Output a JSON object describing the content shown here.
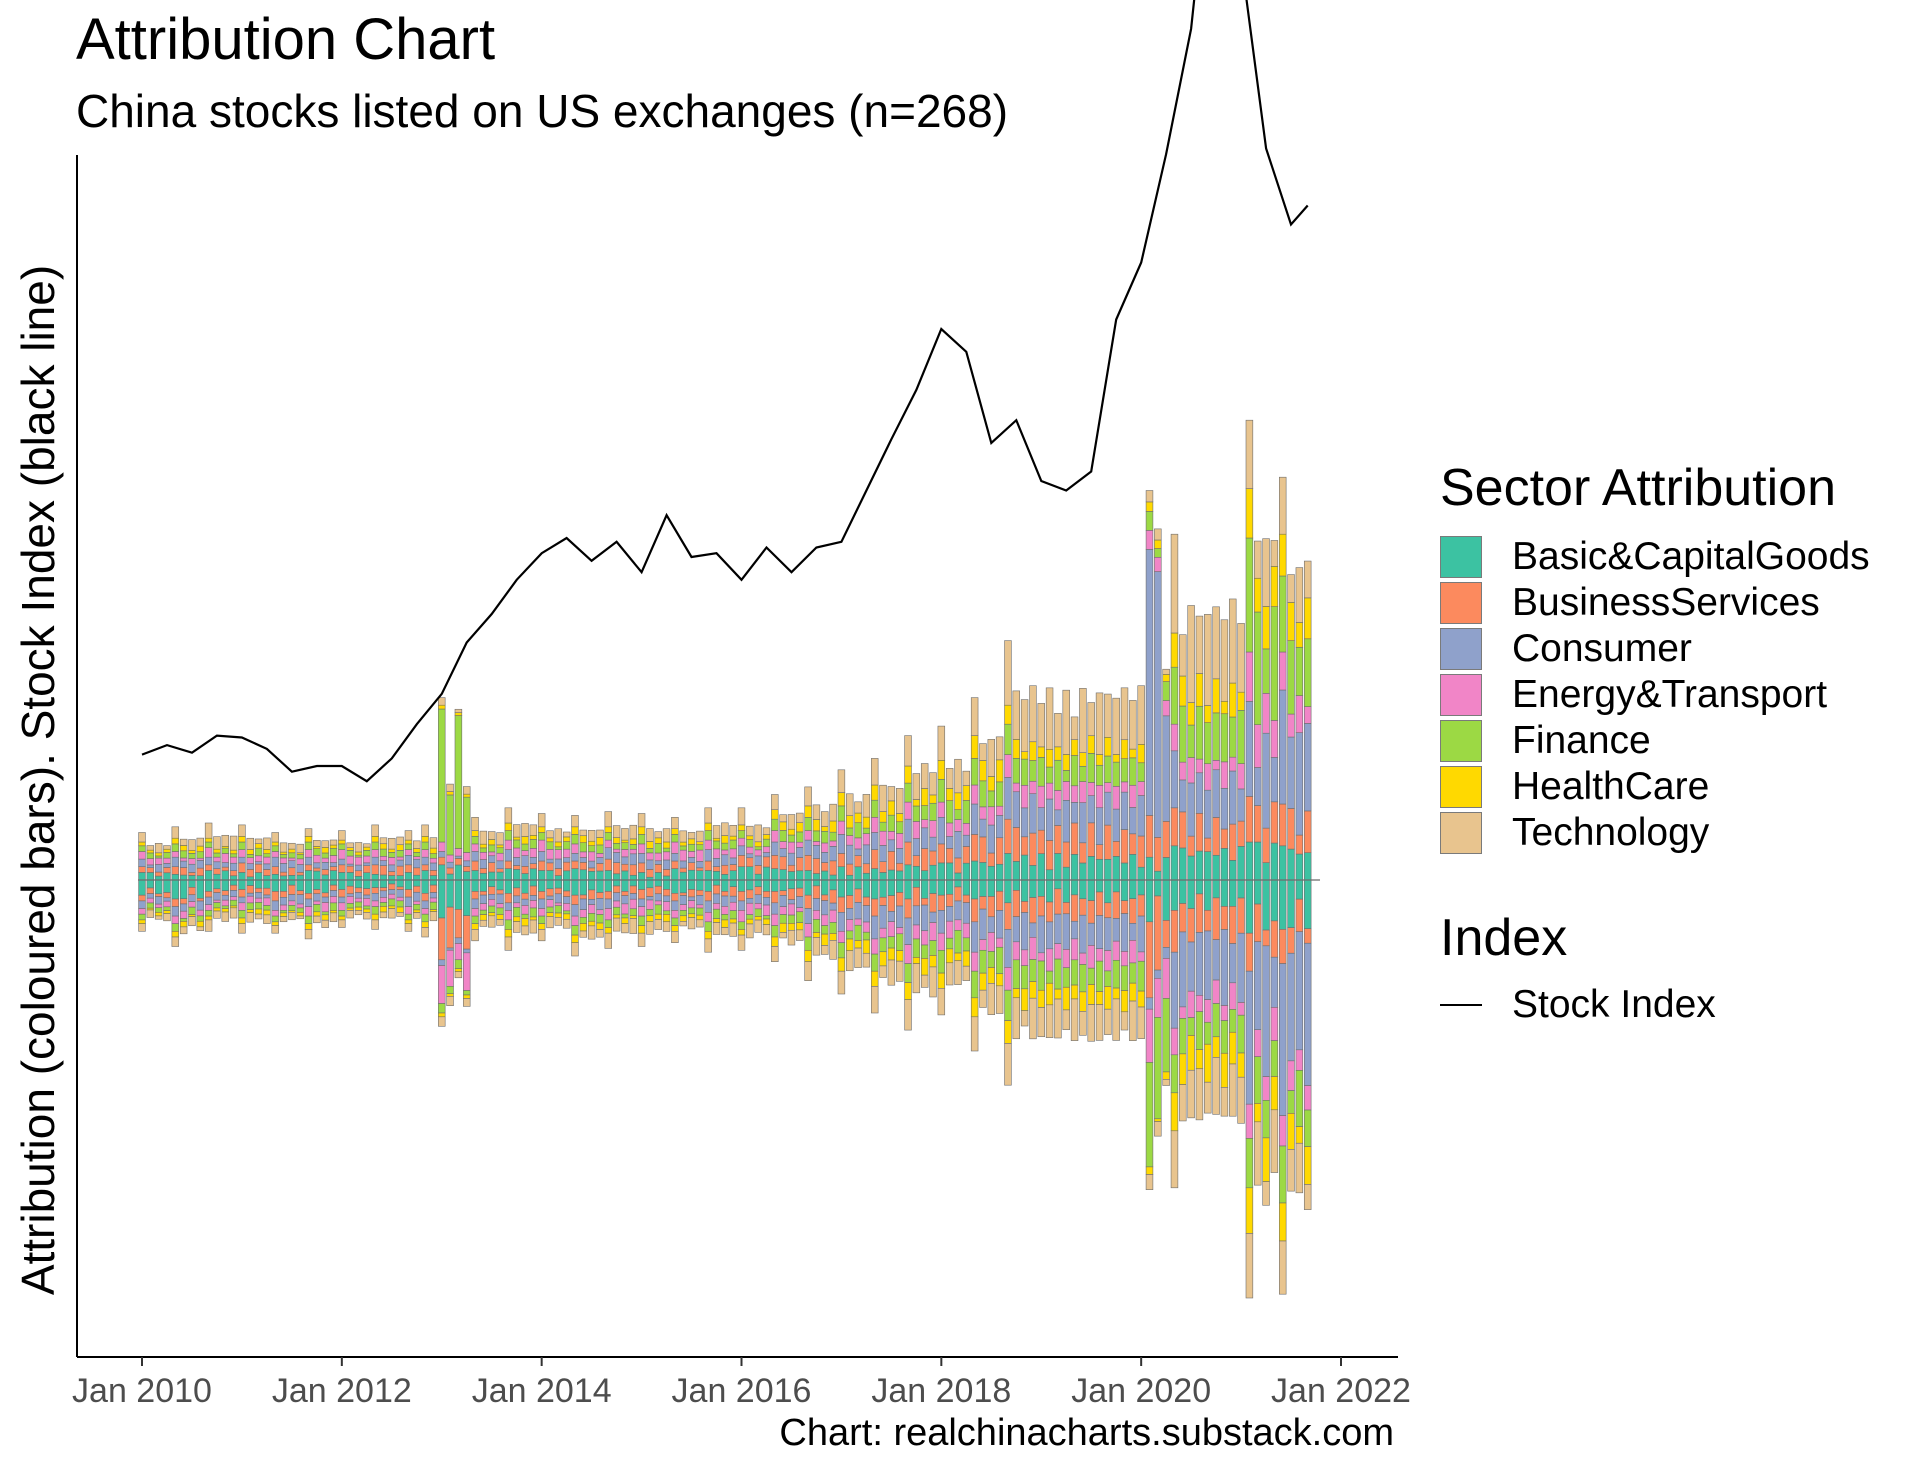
{
  "header": {
    "title": "Attribution Chart",
    "subtitle": "China stocks listed on US exchanges (n=268)",
    "caption": "Chart: realchinacharts.substack.com"
  },
  "legend": {
    "sector_title": "Sector Attribution",
    "index_title": "Index",
    "sectors": [
      {
        "name": "Basic&CapitalGoods",
        "color": "#3cc2a2"
      },
      {
        "name": "BusinessServices",
        "color": "#fc8a5e"
      },
      {
        "name": "Consumer",
        "color": "#8fa1cb"
      },
      {
        "name": "Energy&Transport",
        "color": "#f185c7"
      },
      {
        "name": "Finance",
        "color": "#9cd944"
      },
      {
        "name": "HealthCare",
        "color": "#ffd900"
      },
      {
        "name": "Technology",
        "color": "#e8c48e"
      }
    ],
    "index_label": "Stock Index"
  },
  "chart_data": {
    "type": "bar",
    "title": "Attribution Chart",
    "subtitle": "China stocks listed on US exchanges (n=268)",
    "ylabel": "Attribution (coloured bars). Stock Index (black line)",
    "xlabel": "",
    "x_ticks": [
      "Jan 2010",
      "Jan 2012",
      "Jan 2014",
      "Jan 2016",
      "Jan 2018",
      "Jan 2020",
      "Jan 2022"
    ],
    "x_range": [
      "2009-06",
      "2022-03"
    ],
    "y_ticks_shown": false,
    "grid": false,
    "legend_position": "right",
    "note": "Monthly stacked sector attribution bars (positive above zero, negative below) with a stock index line, Jan 2010 to Sep 2021. Values estimated in arbitrary units; the chart prints no y tick labels.",
    "index_line": {
      "name": "Stock Index",
      "color": "#000000",
      "x": [
        "2010-01",
        "2010-04",
        "2010-07",
        "2010-10",
        "2011-01",
        "2011-04",
        "2011-07",
        "2011-10",
        "2012-01",
        "2012-04",
        "2012-07",
        "2012-10",
        "2013-01",
        "2013-04",
        "2013-07",
        "2013-10",
        "2014-01",
        "2014-04",
        "2014-07",
        "2014-10",
        "2015-01",
        "2015-04",
        "2015-07",
        "2015-10",
        "2016-01",
        "2016-04",
        "2016-07",
        "2016-10",
        "2017-01",
        "2017-04",
        "2017-07",
        "2017-10",
        "2018-01",
        "2018-04",
        "2018-07",
        "2018-10",
        "2019-01",
        "2019-04",
        "2019-07",
        "2019-10",
        "2020-01",
        "2020-04",
        "2020-07",
        "2020-10",
        "2021-01",
        "2021-04",
        "2021-07",
        "2021-09"
      ],
      "values": [
        0.66,
        0.71,
        0.67,
        0.76,
        0.75,
        0.69,
        0.57,
        0.6,
        0.6,
        0.52,
        0.64,
        0.82,
        0.98,
        1.25,
        1.4,
        1.58,
        1.72,
        1.8,
        1.68,
        1.78,
        1.62,
        1.92,
        1.7,
        1.72,
        1.58,
        1.75,
        1.62,
        1.75,
        1.78,
        2.05,
        2.32,
        2.58,
        2.9,
        2.78,
        2.3,
        2.42,
        2.1,
        2.05,
        2.15,
        2.95,
        3.25,
        3.82,
        4.48,
        5.72,
        4.85,
        3.85,
        3.45,
        3.55
      ]
    },
    "series": [
      {
        "name": "Basic&CapitalGoods",
        "pos": [
          0.04,
          0.03,
          0.05,
          0.04,
          0.03,
          0.05,
          0.04,
          0.03,
          0.04,
          0.05,
          0.08,
          0.05,
          0.06,
          0.05,
          0.06,
          0.05,
          0.04,
          0.06,
          0.05,
          0.07,
          0.06,
          0.05,
          0.07,
          0.06,
          0.08,
          0.09,
          0.1,
          0.14,
          0.12,
          0.18,
          0.2,
          0.18
        ],
        "neg": [
          0.08,
          0.1,
          0.06,
          0.05,
          0.06,
          0.07,
          0.05,
          0.04,
          0.05,
          0.07,
          0.2,
          0.06,
          0.07,
          0.06,
          0.08,
          0.06,
          0.05,
          0.07,
          0.06,
          0.06,
          0.06,
          0.08,
          0.09,
          0.1,
          0.1,
          0.08,
          0.1,
          0.12,
          0.22,
          0.16,
          0.28,
          0.26
        ]
      },
      {
        "name": "BusinessServices",
        "pos": [
          0.03,
          0.04,
          0.03,
          0.05,
          0.04,
          0.03,
          0.04,
          0.05,
          0.04,
          0.03,
          0.04,
          0.05,
          0.04,
          0.05,
          0.04,
          0.06,
          0.05,
          0.04,
          0.05,
          0.06,
          0.07,
          0.08,
          0.07,
          0.1,
          0.12,
          0.1,
          0.14,
          0.18,
          0.22,
          0.2,
          0.24,
          0.22
        ],
        "neg": [
          0.03,
          0.04,
          0.03,
          0.04,
          0.05,
          0.03,
          0.04,
          0.03,
          0.04,
          0.04,
          0.22,
          0.04,
          0.05,
          0.04,
          0.05,
          0.04,
          0.05,
          0.04,
          0.05,
          0.05,
          0.06,
          0.07,
          0.08,
          0.09,
          0.1,
          0.08,
          0.12,
          0.14,
          0.4,
          0.22,
          0.2,
          0.18
        ]
      },
      {
        "name": "Consumer",
        "pos": [
          0.04,
          0.05,
          0.04,
          0.03,
          0.05,
          0.04,
          0.03,
          0.04,
          0.05,
          0.04,
          0.03,
          0.05,
          0.06,
          0.05,
          0.04,
          0.06,
          0.05,
          0.04,
          0.06,
          0.05,
          0.07,
          0.08,
          0.1,
          0.09,
          0.12,
          0.14,
          0.16,
          0.22,
          1.4,
          0.3,
          0.5,
          0.6
        ],
        "neg": [
          0.04,
          0.05,
          0.04,
          0.03,
          0.05,
          0.04,
          0.03,
          0.04,
          0.05,
          0.04,
          0.03,
          0.05,
          0.04,
          0.05,
          0.06,
          0.05,
          0.04,
          0.05,
          0.06,
          0.05,
          0.06,
          0.08,
          0.1,
          0.12,
          0.14,
          0.12,
          0.16,
          0.2,
          0.06,
          0.4,
          0.7,
          0.8
        ]
      },
      {
        "name": "Energy&Transport",
        "pos": [
          0.04,
          0.03,
          0.05,
          0.04,
          0.03,
          0.04,
          0.05,
          0.04,
          0.03,
          0.04,
          0.05,
          0.04,
          0.05,
          0.06,
          0.05,
          0.04,
          0.05,
          0.06,
          0.05,
          0.04,
          0.06,
          0.05,
          0.07,
          0.08,
          0.09,
          0.08,
          0.1,
          0.12,
          0.1,
          0.14,
          0.26,
          0.2
        ],
        "neg": [
          0.03,
          0.04,
          0.03,
          0.04,
          0.03,
          0.05,
          0.04,
          0.03,
          0.04,
          0.03,
          0.2,
          0.04,
          0.05,
          0.04,
          0.05,
          0.06,
          0.05,
          0.04,
          0.05,
          0.06,
          0.06,
          0.07,
          0.06,
          0.08,
          0.1,
          0.09,
          0.1,
          0.12,
          0.28,
          0.14,
          0.18,
          0.16
        ]
      },
      {
        "name": "Finance",
        "pos": [
          0.03,
          0.04,
          0.03,
          0.04,
          0.03,
          0.04,
          0.03,
          0.04,
          0.03,
          0.04,
          0.7,
          0.04,
          0.05,
          0.04,
          0.05,
          0.04,
          0.05,
          0.04,
          0.05,
          0.04,
          0.06,
          0.07,
          0.08,
          0.09,
          0.1,
          0.12,
          0.14,
          0.16,
          0.1,
          0.3,
          0.6,
          0.4
        ],
        "neg": [
          0.03,
          0.04,
          0.03,
          0.04,
          0.03,
          0.04,
          0.03,
          0.04,
          0.03,
          0.04,
          0.05,
          0.04,
          0.05,
          0.04,
          0.05,
          0.04,
          0.05,
          0.04,
          0.05,
          0.04,
          0.06,
          0.07,
          0.08,
          0.09,
          0.1,
          0.12,
          0.14,
          0.16,
          0.55,
          0.2,
          0.26,
          0.3
        ]
      },
      {
        "name": "HealthCare",
        "pos": [
          0.02,
          0.03,
          0.02,
          0.03,
          0.02,
          0.03,
          0.02,
          0.03,
          0.02,
          0.03,
          0.02,
          0.03,
          0.04,
          0.03,
          0.04,
          0.03,
          0.04,
          0.03,
          0.04,
          0.03,
          0.05,
          0.06,
          0.07,
          0.08,
          0.09,
          0.1,
          0.12,
          0.1,
          0.05,
          0.18,
          0.26,
          0.22
        ],
        "neg": [
          0.02,
          0.03,
          0.02,
          0.03,
          0.02,
          0.03,
          0.02,
          0.03,
          0.02,
          0.03,
          0.02,
          0.03,
          0.04,
          0.03,
          0.04,
          0.03,
          0.04,
          0.03,
          0.04,
          0.03,
          0.05,
          0.06,
          0.07,
          0.08,
          0.09,
          0.08,
          0.1,
          0.12,
          0.04,
          0.2,
          0.24,
          0.2
        ]
      },
      {
        "name": "Technology",
        "pos": [
          0.05,
          0.06,
          0.08,
          0.06,
          0.05,
          0.04,
          0.05,
          0.06,
          0.05,
          0.06,
          0.04,
          0.07,
          0.08,
          0.07,
          0.06,
          0.08,
          0.07,
          0.06,
          0.08,
          0.09,
          0.08,
          0.1,
          0.12,
          0.14,
          0.16,
          0.18,
          0.2,
          0.34,
          0.06,
          0.52,
          0.36,
          0.3
        ],
        "neg": [
          0.04,
          0.05,
          0.06,
          0.05,
          0.04,
          0.05,
          0.04,
          0.05,
          0.04,
          0.05,
          0.05,
          0.06,
          0.07,
          0.06,
          0.07,
          0.08,
          0.07,
          0.06,
          0.07,
          0.08,
          0.08,
          0.1,
          0.12,
          0.14,
          0.16,
          0.14,
          0.18,
          0.22,
          0.08,
          0.3,
          0.34,
          0.28
        ]
      }
    ],
    "series_period_starts": [
      "2010-01",
      "2010-05",
      "2010-09",
      "2011-01",
      "2011-05",
      "2011-09",
      "2012-01",
      "2012-05",
      "2012-09",
      "2012-11",
      "2013-01",
      "2013-05",
      "2013-09",
      "2014-01",
      "2014-05",
      "2014-09",
      "2015-01",
      "2015-05",
      "2015-09",
      "2016-01",
      "2016-05",
      "2016-09",
      "2017-01",
      "2017-05",
      "2017-09",
      "2018-01",
      "2018-05",
      "2018-09",
      "2020-02",
      "2020-05",
      "2021-02",
      "2021-06"
    ]
  }
}
